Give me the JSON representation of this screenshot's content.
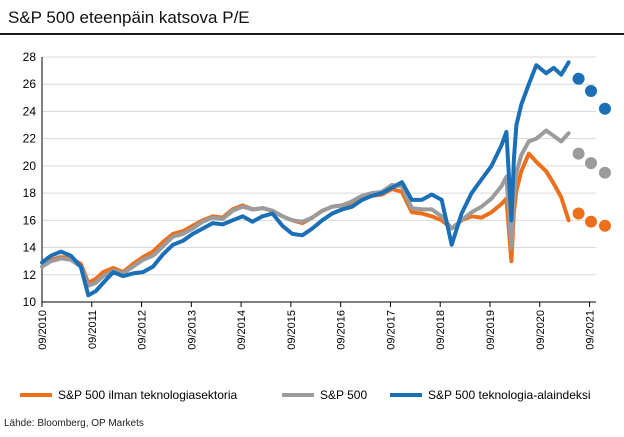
{
  "title": "S&P 500 eteenpäin katsova P/E",
  "source": "Lähde: Bloomberg, OP Markets",
  "colors": {
    "orange": "#ED6F1C",
    "gray": "#9B9B9B",
    "blue": "#1A6FB7",
    "grid": "#d9d9d9",
    "axis": "#000000"
  },
  "chart_data": {
    "type": "line",
    "title": "S&P 500 eteenpäin katsova P/E",
    "xlabel": "",
    "ylabel": "",
    "ylim": [
      10,
      28
    ],
    "yticks": [
      10,
      12,
      14,
      16,
      18,
      20,
      22,
      24,
      26,
      28
    ],
    "xlim": [
      2010.67,
      2021.8
    ],
    "xticks": [
      {
        "x": 2010.67,
        "label": "09/2010"
      },
      {
        "x": 2011.67,
        "label": "09/2011"
      },
      {
        "x": 2012.67,
        "label": "09/2012"
      },
      {
        "x": 2013.67,
        "label": "09/2013"
      },
      {
        "x": 2014.67,
        "label": "09/2014"
      },
      {
        "x": 2015.67,
        "label": "09/2015"
      },
      {
        "x": 2016.67,
        "label": "09/2016"
      },
      {
        "x": 2017.67,
        "label": "09/2017"
      },
      {
        "x": 2018.67,
        "label": "09/2018"
      },
      {
        "x": 2019.67,
        "label": "09/2019"
      },
      {
        "x": 2020.67,
        "label": "09/2020"
      },
      {
        "x": 2021.67,
        "label": "09/2021"
      }
    ],
    "series": [
      {
        "name": "S&P 500 ilman teknologiasektoria",
        "color": "#ED6F1C",
        "x": [
          2010.67,
          2010.85,
          2011.05,
          2011.25,
          2011.45,
          2011.6,
          2011.75,
          2011.9,
          2012.1,
          2012.3,
          2012.5,
          2012.7,
          2012.9,
          2013.1,
          2013.3,
          2013.5,
          2013.7,
          2013.9,
          2014.1,
          2014.3,
          2014.5,
          2014.7,
          2014.9,
          2015.1,
          2015.3,
          2015.5,
          2015.7,
          2015.9,
          2016.1,
          2016.3,
          2016.5,
          2016.7,
          2016.9,
          2017.1,
          2017.3,
          2017.5,
          2017.7,
          2017.9,
          2018.1,
          2018.3,
          2018.5,
          2018.7,
          2018.9,
          2019.1,
          2019.3,
          2019.5,
          2019.7,
          2019.9,
          2020.0,
          2020.1,
          2020.15,
          2020.2,
          2020.3,
          2020.45,
          2020.6,
          2020.8,
          2020.95,
          2021.1,
          2021.25
        ],
        "y": [
          12.6,
          13.1,
          13.3,
          13.2,
          12.8,
          11.4,
          11.7,
          12.2,
          12.5,
          12.2,
          12.8,
          13.3,
          13.7,
          14.4,
          15.0,
          15.2,
          15.6,
          16.0,
          16.3,
          16.2,
          16.8,
          17.1,
          16.8,
          16.9,
          16.7,
          16.3,
          16.0,
          15.8,
          16.2,
          16.7,
          17.0,
          17.1,
          17.3,
          17.6,
          17.8,
          17.9,
          18.3,
          18.1,
          16.6,
          16.5,
          16.3,
          16.0,
          15.4,
          16.0,
          16.3,
          16.2,
          16.6,
          17.2,
          17.6,
          13.0,
          16.6,
          18.2,
          19.6,
          20.9,
          20.3,
          19.6,
          18.7,
          17.7,
          16.0
        ],
        "forecast": [
          {
            "x": 2021.45,
            "y": 16.5
          },
          {
            "x": 2021.7,
            "y": 15.9
          },
          {
            "x": 2021.98,
            "y": 15.6
          }
        ]
      },
      {
        "name": "S&P 500",
        "color": "#9B9B9B",
        "x": [
          2010.67,
          2010.85,
          2011.05,
          2011.25,
          2011.45,
          2011.6,
          2011.75,
          2011.9,
          2012.1,
          2012.3,
          2012.5,
          2012.7,
          2012.9,
          2013.1,
          2013.3,
          2013.5,
          2013.7,
          2013.9,
          2014.1,
          2014.3,
          2014.5,
          2014.7,
          2014.9,
          2015.1,
          2015.3,
          2015.5,
          2015.7,
          2015.9,
          2016.1,
          2016.3,
          2016.5,
          2016.7,
          2016.9,
          2017.1,
          2017.3,
          2017.5,
          2017.7,
          2017.9,
          2018.1,
          2018.3,
          2018.5,
          2018.7,
          2018.9,
          2019.1,
          2019.3,
          2019.5,
          2019.7,
          2019.9,
          2020.0,
          2020.1,
          2020.15,
          2020.2,
          2020.3,
          2020.45,
          2020.6,
          2020.8,
          2020.95,
          2021.1,
          2021.25
        ],
        "y": [
          12.6,
          13.0,
          13.2,
          13.1,
          12.6,
          11.2,
          11.4,
          11.9,
          12.3,
          12.1,
          12.6,
          13.1,
          13.4,
          14.1,
          14.8,
          15.0,
          15.4,
          15.9,
          16.2,
          16.1,
          16.7,
          17.0,
          16.8,
          16.9,
          16.7,
          16.3,
          16.0,
          15.9,
          16.2,
          16.7,
          17.0,
          17.1,
          17.4,
          17.8,
          18.0,
          18.1,
          18.6,
          18.5,
          16.9,
          16.8,
          16.8,
          16.3,
          15.4,
          16.0,
          16.6,
          17.0,
          17.6,
          18.5,
          19.2,
          14.0,
          17.5,
          19.5,
          20.8,
          21.8,
          22.0,
          22.6,
          22.2,
          21.8,
          22.4
        ],
        "forecast": [
          {
            "x": 2021.45,
            "y": 20.9
          },
          {
            "x": 2021.7,
            "y": 20.2
          },
          {
            "x": 2021.98,
            "y": 19.5
          }
        ]
      },
      {
        "name": "S&P 500 teknologia-alaindeksi",
        "color": "#1A6FB7",
        "x": [
          2010.67,
          2010.85,
          2011.05,
          2011.25,
          2011.45,
          2011.6,
          2011.75,
          2011.9,
          2012.1,
          2012.3,
          2012.5,
          2012.7,
          2012.9,
          2013.1,
          2013.3,
          2013.5,
          2013.7,
          2013.9,
          2014.1,
          2014.3,
          2014.5,
          2014.7,
          2014.9,
          2015.1,
          2015.3,
          2015.5,
          2015.7,
          2015.9,
          2016.1,
          2016.3,
          2016.5,
          2016.7,
          2016.9,
          2017.1,
          2017.3,
          2017.5,
          2017.7,
          2017.9,
          2018.1,
          2018.3,
          2018.5,
          2018.7,
          2018.9,
          2019.1,
          2019.3,
          2019.5,
          2019.7,
          2019.9,
          2020.0,
          2020.1,
          2020.15,
          2020.2,
          2020.3,
          2020.45,
          2020.6,
          2020.8,
          2020.95,
          2021.1,
          2021.25
        ],
        "y": [
          12.9,
          13.4,
          13.7,
          13.4,
          12.6,
          10.5,
          10.8,
          11.4,
          12.2,
          11.9,
          12.1,
          12.2,
          12.6,
          13.5,
          14.2,
          14.5,
          15.0,
          15.4,
          15.8,
          15.7,
          16.0,
          16.3,
          15.9,
          16.3,
          16.5,
          15.6,
          15.0,
          14.9,
          15.4,
          16.0,
          16.5,
          16.8,
          17.0,
          17.5,
          17.8,
          18.0,
          18.4,
          18.8,
          17.5,
          17.5,
          17.9,
          17.5,
          14.2,
          16.5,
          18.0,
          19.0,
          20.0,
          21.5,
          22.5,
          16.0,
          20.5,
          23.0,
          24.5,
          26.0,
          27.4,
          26.8,
          27.2,
          26.7,
          27.6
        ],
        "forecast": [
          {
            "x": 2021.45,
            "y": 26.4
          },
          {
            "x": 2021.7,
            "y": 25.5
          },
          {
            "x": 2021.98,
            "y": 24.2
          }
        ]
      }
    ],
    "legend": "bottom"
  }
}
